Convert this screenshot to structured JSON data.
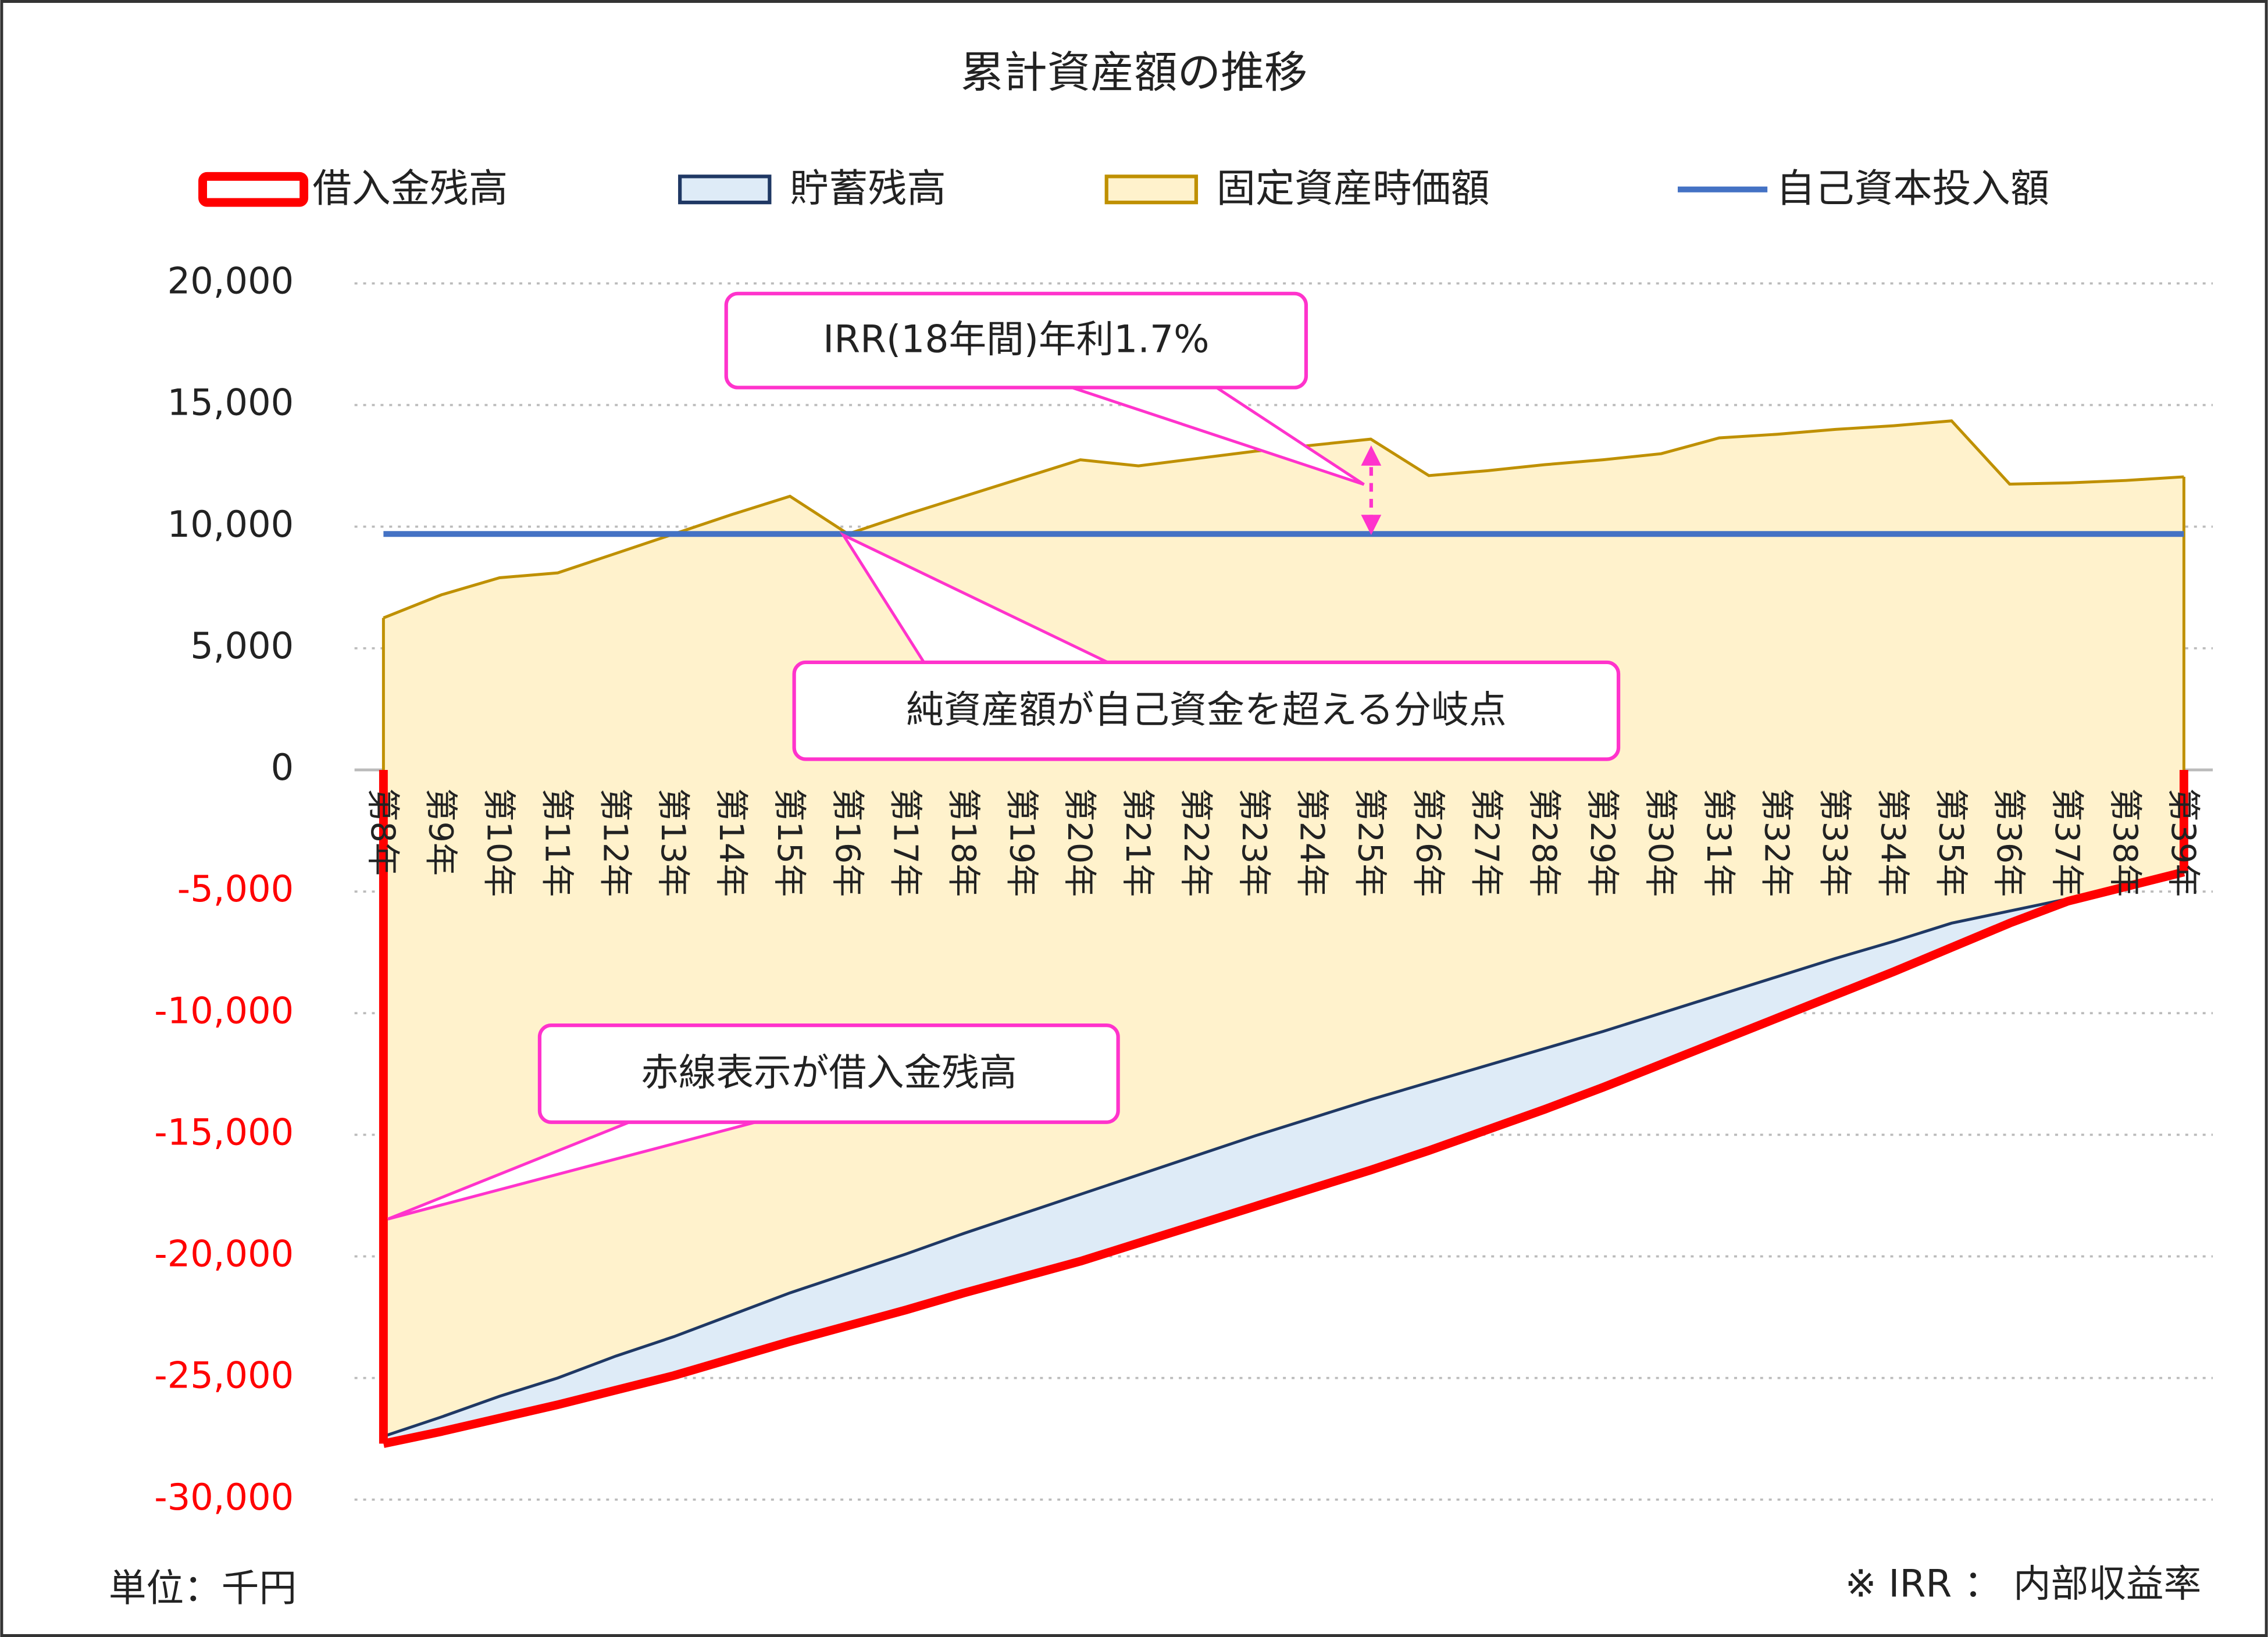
{
  "chart_data": {
    "type": "area",
    "title": "累計資産額の推移",
    "categories": [
      "第8年",
      "第9年",
      "第10年",
      "第11年",
      "第12年",
      "第13年",
      "第14年",
      "第15年",
      "第16年",
      "第17年",
      "第18年",
      "第19年",
      "第20年",
      "第21年",
      "第22年",
      "第23年",
      "第24年",
      "第25年",
      "第26年",
      "第27年",
      "第28年",
      "第29年",
      "第30年",
      "第31年",
      "第32年",
      "第33年",
      "第34年",
      "第35年",
      "第36年",
      "第37年",
      "第38年",
      "第39年"
    ],
    "series": [
      {
        "name": "借入金残高",
        "color": "#ff0000",
        "fill": "#ffffff",
        "values": [
          -27700,
          -27200,
          -26650,
          -26100,
          -25500,
          -24900,
          -24200,
          -23500,
          -22850,
          -22200,
          -21500,
          -20850,
          -20200,
          -19450,
          -18700,
          -17950,
          -17200,
          -16450,
          -15650,
          -14800,
          -13950,
          -13050,
          -12100,
          -11150,
          -10200,
          -9250,
          -8300,
          -7300,
          -6300,
          -5400,
          -4800,
          -4200
        ]
      },
      {
        "name": "貯蓄残高",
        "color": "#1f3864",
        "fill": "#deebf7",
        "values": [
          300,
          600,
          900,
          1100,
          1400,
          1600,
          1800,
          2000,
          2150,
          2300,
          2450,
          2600,
          2750,
          2800,
          2850,
          2900,
          2900,
          2900,
          2800,
          2650,
          2500,
          2300,
          2100,
          1900,
          1700,
          1500,
          1250,
          1000,
          500,
          100,
          0,
          0
        ]
      },
      {
        "name": "固定資産時価額",
        "color": "#bf9000",
        "fill": "#fff2cc",
        "values": [
          6250,
          7200,
          7900,
          8100,
          8900,
          9700,
          10500,
          11250,
          9700,
          10500,
          11250,
          12000,
          12750,
          12500,
          12800,
          13100,
          13350,
          13600,
          12100,
          12300,
          12550,
          12750,
          13000,
          13650,
          13800,
          14000,
          14150,
          14350,
          11750,
          11800,
          11900,
          12050
        ]
      },
      {
        "name": "自己資本投入額",
        "color": "#4472c4",
        "values": [
          9700,
          9700,
          9700,
          9700,
          9700,
          9700,
          9700,
          9700,
          9700,
          9700,
          9700,
          9700,
          9700,
          9700,
          9700,
          9700,
          9700,
          9700,
          9700,
          9700,
          9700,
          9700,
          9700,
          9700,
          9700,
          9700,
          9700,
          9700,
          9700,
          9700,
          9700,
          9700
        ]
      }
    ],
    "ylim": [
      -30000,
      20000
    ],
    "yticks": [
      {
        "value": 20000,
        "label": "20,000"
      },
      {
        "value": 15000,
        "label": "15,000"
      },
      {
        "value": 10000,
        "label": "10,000"
      },
      {
        "value": 5000,
        "label": "5,000"
      },
      0,
      {
        "value": -5000,
        "label": "-5,000"
      },
      {
        "value": -10000,
        "label": "-10,000"
      },
      {
        "value": -15000,
        "label": "-15,000"
      },
      {
        "value": -20000,
        "label": "-20,000"
      },
      {
        "value": -25000,
        "label": "-25,000"
      },
      {
        "value": -30000,
        "label": "-30,000"
      }
    ],
    "negative_tick_color": "#ff0000",
    "grid": true,
    "legend": "top",
    "annotations": [
      "IRR(18年間)年利1.7%",
      "純資産額が自己資金を超える分岐点",
      "赤線表示が借入金残高"
    ],
    "unit_note": "単位：千円",
    "footnote": "※ IRR ： 内部収益率"
  }
}
